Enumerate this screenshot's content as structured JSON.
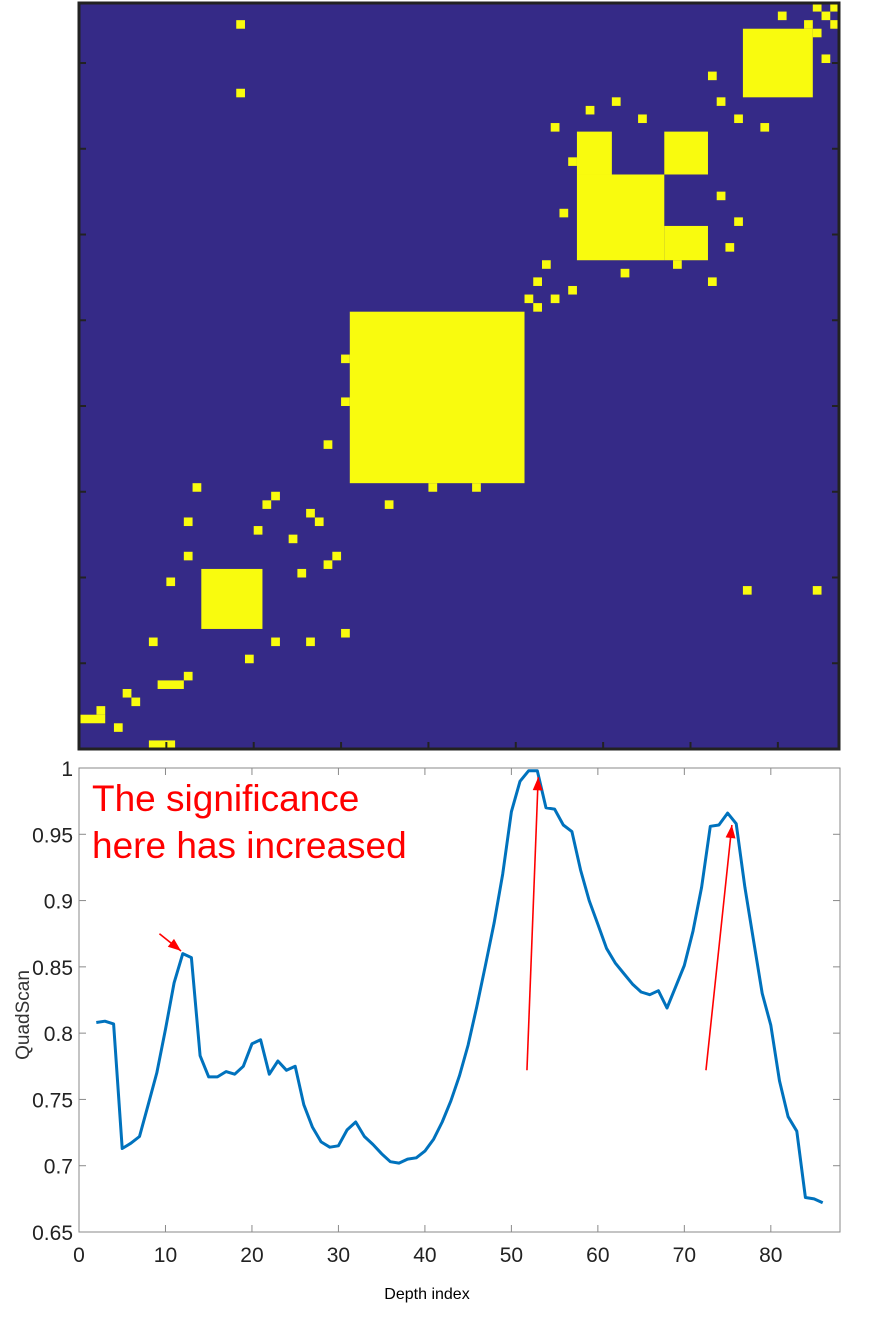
{
  "chart_data": [
    {
      "type": "heatmap",
      "title": "",
      "colors": {
        "low": "#352A87",
        "high": "#F9FB0E",
        "frame": "#222222"
      },
      "grid_n": 87,
      "blocks": [
        [
          3,
          3,
          0,
          2
        ],
        [
          0,
          0,
          8,
          10
        ],
        [
          7,
          7,
          9,
          11
        ],
        [
          14,
          20,
          14,
          20
        ],
        [
          31,
          50,
          31,
          50
        ],
        [
          57,
          66,
          57,
          66
        ],
        [
          57,
          60,
          67,
          71
        ],
        [
          67,
          71,
          57,
          60
        ],
        [
          67,
          71,
          67,
          71
        ],
        [
          76,
          83,
          76,
          83
        ]
      ],
      "points": [
        [
          2,
          4
        ],
        [
          4,
          2
        ],
        [
          5,
          6
        ],
        [
          6,
          5
        ],
        [
          8,
          12
        ],
        [
          12,
          8
        ],
        [
          10,
          19
        ],
        [
          19,
          10
        ],
        [
          12,
          22
        ],
        [
          22,
          12
        ],
        [
          12,
          26
        ],
        [
          26,
          12
        ],
        [
          13,
          30
        ],
        [
          30,
          13
        ],
        [
          20,
          25
        ],
        [
          25,
          20
        ],
        [
          21,
          28
        ],
        [
          28,
          21
        ],
        [
          22,
          29
        ],
        [
          29,
          22
        ],
        [
          24,
          24
        ],
        [
          26,
          27
        ],
        [
          27,
          26
        ],
        [
          28,
          35
        ],
        [
          35,
          28
        ],
        [
          30,
          40
        ],
        [
          40,
          30
        ],
        [
          30,
          45
        ],
        [
          45,
          30
        ],
        [
          51,
          52
        ],
        [
          52,
          51
        ],
        [
          52,
          54
        ],
        [
          54,
          52
        ],
        [
          53,
          56
        ],
        [
          56,
          53
        ],
        [
          55,
          62
        ],
        [
          62,
          55
        ],
        [
          56,
          68
        ],
        [
          68,
          56
        ],
        [
          54,
          72
        ],
        [
          72,
          54
        ],
        [
          58,
          74
        ],
        [
          74,
          58
        ],
        [
          61,
          75
        ],
        [
          75,
          61
        ],
        [
          64,
          73
        ],
        [
          73,
          64
        ],
        [
          73,
          75
        ],
        [
          75,
          73
        ],
        [
          80,
          85
        ],
        [
          85,
          80
        ],
        [
          84,
          86
        ],
        [
          86,
          84
        ],
        [
          78,
          72
        ],
        [
          72,
          78
        ],
        [
          86,
          86
        ],
        [
          85,
          85
        ],
        [
          83,
          84
        ],
        [
          84,
          83
        ],
        [
          18,
          76
        ],
        [
          76,
          18
        ],
        [
          18,
          84
        ],
        [
          84,
          18
        ]
      ]
    },
    {
      "type": "line",
      "xlabel": "Depth index",
      "ylabel": "QuadScan",
      "xlim": [
        0,
        88
      ],
      "ylim": [
        0.65,
        1.0
      ],
      "xticks": [
        0,
        10,
        20,
        30,
        40,
        50,
        60,
        70,
        80
      ],
      "yticks": [
        0.65,
        0.7,
        0.75,
        0.8,
        0.85,
        0.9,
        0.95,
        1
      ],
      "line_color": "#0072BD",
      "annotation_color": "#FF0000",
      "annotation_lines": [
        "The significance",
        "here has increased"
      ],
      "arrows": [
        {
          "from": [
            9.3,
            0.875
          ],
          "to": [
            11.8,
            0.862
          ]
        },
        {
          "from": [
            51.8,
            0.772
          ],
          "to": [
            53.1,
            0.993
          ]
        },
        {
          "from": [
            72.5,
            0.772
          ],
          "to": [
            75.5,
            0.957
          ]
        }
      ],
      "series": [
        {
          "x": [
            2,
            3,
            4,
            5,
            6,
            7,
            8,
            9,
            10,
            11,
            12,
            13,
            14,
            15,
            16,
            17,
            18,
            19,
            20,
            21,
            22,
            23,
            24,
            25,
            26,
            27,
            28,
            29,
            30,
            31,
            32,
            33,
            34,
            35,
            36,
            37,
            38,
            39,
            40,
            41,
            42,
            43,
            44,
            45,
            46,
            47,
            48,
            49,
            50,
            51,
            52,
            53,
            54,
            55,
            56,
            57,
            58,
            59,
            60,
            61,
            62,
            63,
            64,
            65,
            66,
            67,
            68,
            69,
            70,
            71,
            72,
            73,
            74,
            75,
            76,
            77,
            78,
            79,
            80,
            81,
            82,
            83,
            84,
            85,
            86
          ],
          "values": [
            0.808,
            0.809,
            0.807,
            0.713,
            0.717,
            0.722,
            0.746,
            0.77,
            0.803,
            0.838,
            0.86,
            0.857,
            0.783,
            0.767,
            0.767,
            0.771,
            0.769,
            0.775,
            0.792,
            0.795,
            0.769,
            0.779,
            0.772,
            0.775,
            0.746,
            0.729,
            0.718,
            0.714,
            0.715,
            0.727,
            0.733,
            0.722,
            0.716,
            0.709,
            0.703,
            0.702,
            0.705,
            0.706,
            0.711,
            0.72,
            0.733,
            0.749,
            0.768,
            0.791,
            0.82,
            0.851,
            0.883,
            0.92,
            0.967,
            0.99,
            0.998,
            0.998,
            0.97,
            0.969,
            0.957,
            0.952,
            0.923,
            0.9,
            0.882,
            0.864,
            0.853,
            0.845,
            0.837,
            0.831,
            0.829,
            0.832,
            0.819,
            0.835,
            0.851,
            0.877,
            0.91,
            0.956,
            0.957,
            0.966,
            0.958,
            0.91,
            0.87,
            0.83,
            0.806,
            0.764,
            0.737,
            0.726,
            0.676,
            0.675,
            0.672
          ]
        }
      ]
    }
  ]
}
